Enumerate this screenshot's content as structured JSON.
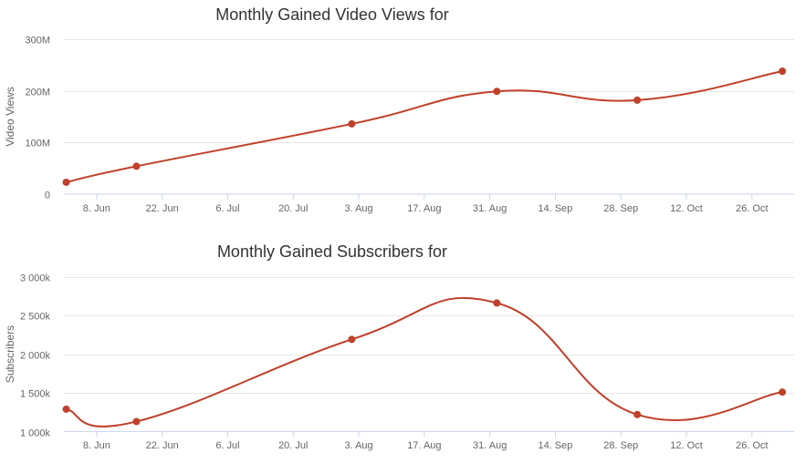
{
  "charts": [
    {
      "type": "line",
      "title": "Monthly Gained Video Views for",
      "ylabel": "Video Views",
      "y_ticks": [
        {
          "v": 0,
          "label": "0"
        },
        {
          "v": 100,
          "label": "100M"
        },
        {
          "v": 200,
          "label": "200M"
        },
        {
          "v": 300,
          "label": "300M"
        }
      ],
      "ylim": [
        0,
        300
      ],
      "x_ticks": [
        {
          "x": 7,
          "label": "8. Jun"
        },
        {
          "x": 21,
          "label": "22. Jun"
        },
        {
          "x": 35,
          "label": "6. Jul"
        },
        {
          "x": 49,
          "label": "20. Jul"
        },
        {
          "x": 63,
          "label": "3. Aug"
        },
        {
          "x": 77,
          "label": "17. Aug"
        },
        {
          "x": 91,
          "label": "31. Aug"
        },
        {
          "x": 105,
          "label": "14. Sep"
        },
        {
          "x": 119,
          "label": "28. Sep"
        },
        {
          "x": 133,
          "label": "12. Oct"
        },
        {
          "x": 147,
          "label": "26. Oct"
        }
      ],
      "xlim": [
        0,
        156
      ],
      "series": [
        {
          "color": "#c0402a",
          "points": [
            {
              "x": 0.5,
              "y": 23
            },
            {
              "x": 15.5,
              "y": 54
            },
            {
              "x": 61.5,
              "y": 136
            },
            {
              "x": 92.5,
              "y": 199
            },
            {
              "x": 122.5,
              "y": 182
            },
            {
              "x": 153.5,
              "y": 238
            }
          ]
        }
      ]
    },
    {
      "type": "line",
      "title": "Monthly Gained Subscribers for",
      "ylabel": "Subscribers",
      "y_ticks": [
        {
          "v": 1000,
          "label": "1 000k"
        },
        {
          "v": 1500,
          "label": "1 500k"
        },
        {
          "v": 2000,
          "label": "2 000k"
        },
        {
          "v": 2500,
          "label": "2 500k"
        },
        {
          "v": 3000,
          "label": "3 000k"
        }
      ],
      "ylim": [
        1000,
        3000
      ],
      "x_ticks": [
        {
          "x": 7,
          "label": "8. Jun"
        },
        {
          "x": 21,
          "label": "22. Jun"
        },
        {
          "x": 35,
          "label": "6. Jul"
        },
        {
          "x": 49,
          "label": "20. Jul"
        },
        {
          "x": 63,
          "label": "3. Aug"
        },
        {
          "x": 77,
          "label": "17. Aug"
        },
        {
          "x": 91,
          "label": "31. Aug"
        },
        {
          "x": 105,
          "label": "14. Sep"
        },
        {
          "x": 119,
          "label": "28. Sep"
        },
        {
          "x": 133,
          "label": "12. Oct"
        },
        {
          "x": 147,
          "label": "26. Oct"
        }
      ],
      "xlim": [
        0,
        156
      ],
      "series": [
        {
          "color": "#c0402a",
          "points": [
            {
              "x": 0.5,
              "y": 1290
            },
            {
              "x": 15.5,
              "y": 1130
            },
            {
              "x": 61.5,
              "y": 2190
            },
            {
              "x": 92.5,
              "y": 2660
            },
            {
              "x": 122.5,
              "y": 1220
            },
            {
              "x": 153.5,
              "y": 1510
            }
          ]
        }
      ]
    }
  ]
}
